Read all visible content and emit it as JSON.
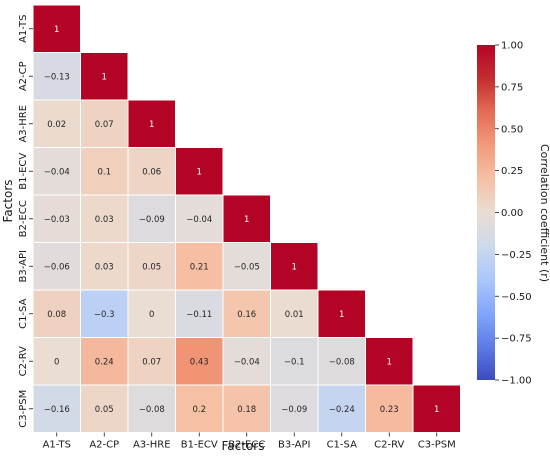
{
  "chart_data": {
    "type": "heatmap",
    "title": "",
    "xlabel": "Factors",
    "ylabel": "Factors",
    "factors": [
      "A1-TS",
      "A2-CP",
      "A3-HRE",
      "B1-ECV",
      "B2-ECC",
      "B3-API",
      "C1-SA",
      "C2-RV",
      "C3-PSM"
    ],
    "matrix_lower": [
      [
        1
      ],
      [
        -0.13,
        1
      ],
      [
        0.02,
        0.07,
        1
      ],
      [
        -0.04,
        0.1,
        0.06,
        1
      ],
      [
        -0.03,
        0.03,
        -0.09,
        -0.04,
        1
      ],
      [
        -0.06,
        0.03,
        0.05,
        0.21,
        -0.05,
        1
      ],
      [
        0.08,
        -0.3,
        0,
        -0.11,
        0.16,
        0.01,
        1
      ],
      [
        0,
        0.24,
        0.07,
        0.43,
        -0.04,
        -0.1,
        -0.08,
        1
      ],
      [
        -0.16,
        0.05,
        -0.08,
        0.2,
        0.18,
        -0.09,
        -0.24,
        0.23,
        1
      ]
    ],
    "cell_labels": [
      [
        "1"
      ],
      [
        "−0.13",
        "1"
      ],
      [
        "0.02",
        "0.07",
        "1"
      ],
      [
        "−0.04",
        "0.1",
        "0.06",
        "1"
      ],
      [
        "−0.03",
        "0.03",
        "−0.09",
        "−0.04",
        "1"
      ],
      [
        "−0.06",
        "0.03",
        "0.05",
        "0.21",
        "−0.05",
        "1"
      ],
      [
        "0.08",
        "−0.3",
        "0",
        "−0.11",
        "0.16",
        "0.01",
        "1"
      ],
      [
        "0",
        "0.24",
        "0.07",
        "0.43",
        "−0.04",
        "−0.1",
        "−0.08",
        "1"
      ],
      [
        "−0.16",
        "0.05",
        "−0.08",
        "0.2",
        "0.18",
        "−0.09",
        "−0.24",
        "0.23",
        "1"
      ]
    ],
    "colorbar": {
      "label": "Correlation coefficient (r)",
      "range": [
        -1,
        1
      ],
      "colormap": "coolwarm",
      "ticks": [
        1,
        0.75,
        0.5,
        0.25,
        0,
        -0.25,
        -0.5,
        -0.75,
        -1
      ],
      "tick_labels": [
        "1.00",
        "0.75",
        "0.50",
        "0.25",
        "0.00",
        "−0.25",
        "−0.50",
        "−0.75",
        "−1.00"
      ],
      "color_stops": [
        "#3b4cc0",
        "#5d7ce6",
        "#82a6fb",
        "#aac7fd",
        "#cdd9ec",
        "#eaddd3",
        "#f6c0a5",
        "#f49a7b",
        "#e36c55",
        "#c32e2f",
        "#b40426"
      ]
    },
    "cell_border_color": "#ffffff",
    "legend_placement": "right",
    "grid": false
  }
}
